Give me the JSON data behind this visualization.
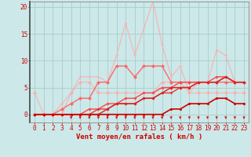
{
  "xlabel": "Vent moyen/en rafales ( km/h )",
  "background_color": "#cce8e8",
  "grid_color": "#aacccc",
  "xlim": [
    -0.5,
    23.5
  ],
  "ylim": [
    -1.5,
    21
  ],
  "yticks": [
    0,
    5,
    10,
    15,
    20
  ],
  "xticks": [
    0,
    1,
    2,
    3,
    4,
    5,
    6,
    7,
    8,
    9,
    10,
    11,
    12,
    13,
    14,
    15,
    16,
    17,
    18,
    19,
    20,
    21,
    22,
    23
  ],
  "lines": [
    {
      "x": [
        0,
        1,
        2,
        3,
        4,
        5,
        6,
        7,
        8,
        9,
        10,
        11,
        12,
        13,
        14,
        15,
        16,
        17,
        18,
        19,
        20,
        21,
        22,
        23
      ],
      "y": [
        0,
        0,
        0,
        2,
        4,
        7,
        7,
        7,
        6,
        11,
        17,
        11,
        16,
        21,
        13,
        7,
        9,
        4,
        6,
        6,
        12,
        11,
        6,
        6
      ],
      "color": "#ffaaaa",
      "lw": 0.8,
      "marker": "+",
      "ms": 3.0,
      "alpha": 0.9,
      "zorder": 2
    },
    {
      "x": [
        0,
        1,
        2,
        3,
        4,
        5,
        6,
        7,
        8,
        9,
        10,
        11,
        12,
        13,
        14,
        15,
        16,
        17,
        18,
        19,
        20,
        21,
        22,
        23
      ],
      "y": [
        4,
        0,
        0,
        0,
        4,
        6,
        6,
        4,
        4,
        4,
        4,
        4,
        4,
        4,
        6,
        6,
        6,
        4,
        4,
        4,
        4,
        4,
        4,
        4
      ],
      "color": "#ffaaaa",
      "lw": 0.8,
      "marker": "D",
      "ms": 2.0,
      "alpha": 0.85,
      "zorder": 3
    },
    {
      "x": [
        0,
        1,
        2,
        3,
        4,
        5,
        6,
        7,
        8,
        9,
        10,
        11,
        12,
        13,
        14,
        15,
        16,
        17,
        18,
        19,
        20,
        21,
        22,
        23
      ],
      "y": [
        0,
        0,
        0,
        1,
        2,
        3,
        3,
        6,
        6,
        9,
        9,
        7,
        9,
        9,
        9,
        6,
        6,
        6,
        6,
        6,
        6,
        6,
        6,
        6
      ],
      "color": "#ff6666",
      "lw": 1.0,
      "marker": "D",
      "ms": 2.0,
      "alpha": 1.0,
      "zorder": 4
    },
    {
      "x": [
        0,
        1,
        2,
        3,
        4,
        5,
        6,
        7,
        8,
        9,
        10,
        11,
        12,
        13,
        14,
        15,
        16,
        17,
        18,
        19,
        20,
        21,
        22,
        23
      ],
      "y": [
        0,
        0,
        0,
        0,
        0,
        0,
        1,
        1,
        2,
        2,
        3,
        3,
        4,
        4,
        5,
        5,
        6,
        6,
        6,
        6,
        7,
        7,
        6,
        6
      ],
      "color": "#ff4444",
      "lw": 1.0,
      "marker": "D",
      "ms": 1.5,
      "alpha": 1.0,
      "zorder": 5
    },
    {
      "x": [
        0,
        1,
        2,
        3,
        4,
        5,
        6,
        7,
        8,
        9,
        10,
        11,
        12,
        13,
        14,
        15,
        16,
        17,
        18,
        19,
        20,
        21,
        22,
        23
      ],
      "y": [
        0,
        0,
        0,
        0,
        0,
        0,
        0,
        1,
        1,
        2,
        2,
        2,
        3,
        3,
        4,
        4,
        5,
        5,
        6,
        6,
        6,
        7,
        6,
        6
      ],
      "color": "#ee3333",
      "lw": 1.0,
      "marker": "D",
      "ms": 1.5,
      "alpha": 1.0,
      "zorder": 5
    },
    {
      "x": [
        0,
        1,
        2,
        3,
        4,
        5,
        6,
        7,
        8,
        9,
        10,
        11,
        12,
        13,
        14,
        15,
        16,
        17,
        18,
        19,
        20,
        21,
        22,
        23
      ],
      "y": [
        0,
        0,
        0,
        0,
        0,
        0,
        0,
        0,
        1,
        2,
        2,
        2,
        3,
        3,
        4,
        5,
        5,
        5,
        6,
        6,
        6,
        7,
        6,
        6
      ],
      "color": "#dd2222",
      "lw": 1.0,
      "marker": "D",
      "ms": 1.5,
      "alpha": 1.0,
      "zorder": 5
    },
    {
      "x": [
        0,
        1,
        2,
        3,
        4,
        5,
        6,
        7,
        8,
        9,
        10,
        11,
        12,
        13,
        14,
        15,
        16,
        17,
        18,
        19,
        20,
        21,
        22,
        23
      ],
      "y": [
        0,
        0,
        0,
        0,
        0,
        0,
        0,
        0,
        0,
        0,
        0,
        0,
        0,
        0,
        0,
        1,
        1,
        2,
        2,
        2,
        3,
        3,
        2,
        2
      ],
      "color": "#cc0000",
      "lw": 1.2,
      "marker": "s",
      "ms": 1.5,
      "alpha": 1.0,
      "zorder": 6
    }
  ],
  "arrow_color": "#cc2222",
  "xlabel_color": "#cc0000",
  "tick_color": "#cc0000",
  "label_fontsize": 6.5,
  "tick_fontsize": 5.5
}
